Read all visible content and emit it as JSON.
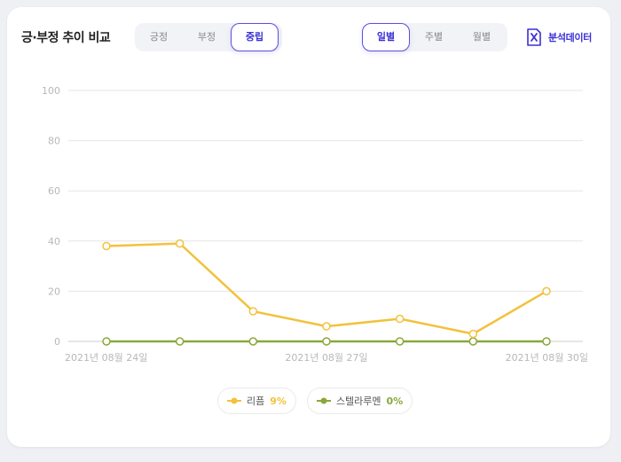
{
  "header": {
    "title": "긍·부정 추이 비교",
    "sentiment_tabs": [
      {
        "label": "긍정",
        "active": false
      },
      {
        "label": "부정",
        "active": false
      },
      {
        "label": "중립",
        "active": true
      }
    ],
    "period_tabs": [
      {
        "label": "일별",
        "active": true
      },
      {
        "label": "주별",
        "active": false
      },
      {
        "label": "월별",
        "active": false
      }
    ],
    "export_label": "분석데이터",
    "export_icon": "excel-file-icon"
  },
  "legend": [
    {
      "name": "리픔",
      "percent": "9%",
      "color": "#f2c23c"
    },
    {
      "name": "스텔라루멘",
      "percent": "0%",
      "color": "#8aa83a"
    }
  ],
  "chart_data": {
    "type": "line",
    "x": [
      "2021-08-24",
      "2021-08-25",
      "2021-08-26",
      "2021-08-27",
      "2021-08-28",
      "2021-08-29",
      "2021-08-30"
    ],
    "x_tick_labels": [
      "2021년 08월 24일",
      "2021년 08월 27일",
      "2021년 08월 30일"
    ],
    "y_ticks": [
      "100",
      "80",
      "60",
      "40",
      "20",
      "0"
    ],
    "ylim": [
      0,
      100
    ],
    "grid": true,
    "series": [
      {
        "name": "리픔",
        "color": "#f2c23c",
        "values": [
          38,
          39,
          12,
          6,
          9,
          3,
          20
        ]
      },
      {
        "name": "스텔라루멘",
        "color": "#8aa83a",
        "values": [
          0,
          0,
          0,
          0,
          0,
          0,
          0
        ]
      }
    ]
  }
}
